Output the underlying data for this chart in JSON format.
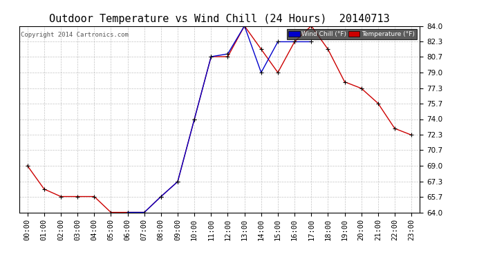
{
  "title": "Outdoor Temperature vs Wind Chill (24 Hours)  20140713",
  "copyright": "Copyright 2014 Cartronics.com",
  "legend_wind_chill": "Wind Chill (°F)",
  "legend_temperature": "Temperature (°F)",
  "x_labels": [
    "00:00",
    "01:00",
    "02:00",
    "03:00",
    "04:00",
    "05:00",
    "06:00",
    "07:00",
    "08:00",
    "09:00",
    "10:00",
    "11:00",
    "12:00",
    "13:00",
    "14:00",
    "15:00",
    "16:00",
    "17:00",
    "18:00",
    "19:00",
    "20:00",
    "21:00",
    "22:00",
    "23:00"
  ],
  "temperature": [
    69.0,
    66.5,
    65.7,
    65.7,
    65.7,
    64.0,
    64.0,
    64.0,
    65.7,
    67.3,
    74.0,
    80.7,
    80.7,
    84.0,
    81.5,
    79.0,
    82.3,
    84.0,
    81.5,
    78.0,
    77.3,
    75.7,
    73.0,
    72.3
  ],
  "wind_chill_x": [
    6,
    7,
    8,
    9,
    10,
    11,
    12,
    13,
    14,
    15,
    16,
    17
  ],
  "wind_chill_y": [
    64.0,
    64.0,
    65.7,
    67.3,
    74.0,
    80.7,
    81.0,
    84.0,
    79.0,
    82.3,
    82.3,
    82.3
  ],
  "ylim": [
    64.0,
    84.0
  ],
  "yticks": [
    64.0,
    65.7,
    67.3,
    69.0,
    70.7,
    72.3,
    74.0,
    75.7,
    77.3,
    79.0,
    80.7,
    82.3,
    84.0
  ],
  "bg_color": "#ffffff",
  "grid_color": "#aaaaaa",
  "temp_color": "#cc0000",
  "wind_color": "#0000cc",
  "marker_color": "#000000",
  "title_fontsize": 11,
  "axis_fontsize": 7.5
}
